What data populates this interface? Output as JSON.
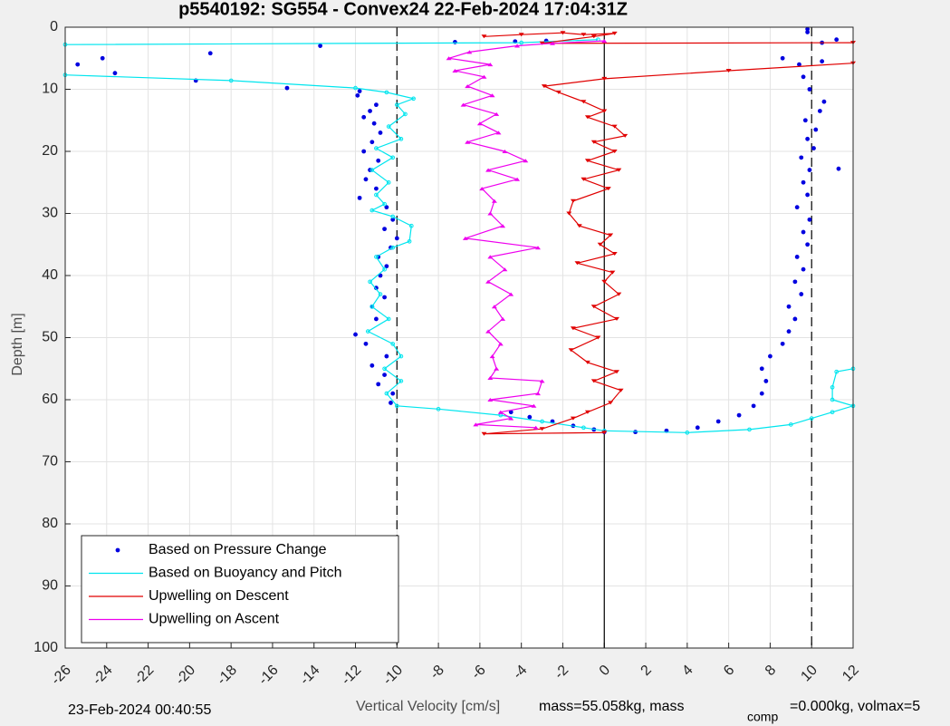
{
  "chart_data": {
    "type": "line",
    "title": "p5540192: SG554 - Convex24 22-Feb-2024 17:04:31Z",
    "x_label": "Vertical Velocity [cm/s]",
    "y_label": "Depth [m]",
    "annotations": [
      "23-Feb-2024 00:40:55",
      "mass=55.058kg, mass",
      "comp",
      "=0.000kg, volmax=5"
    ],
    "xlim": [
      -26,
      12
    ],
    "xticks": [
      -26,
      -24,
      -22,
      -20,
      -18,
      -16,
      -14,
      -12,
      -10,
      -8,
      -6,
      -4,
      -2,
      0,
      2,
      4,
      6,
      8,
      10,
      12
    ],
    "ylim": [
      0,
      100
    ],
    "yticks": [
      0,
      10,
      20,
      30,
      40,
      50,
      60,
      70,
      80,
      90,
      100
    ],
    "y_reversed": true,
    "grid": true,
    "legend": "lower left",
    "vlines": [
      -10,
      0,
      10
    ],
    "series": [
      {
        "name": "Based on Pressure Change",
        "color": "#0000e0",
        "style": "dots",
        "x": [
          -25.4,
          -24.2,
          -23.6,
          -19,
          -19.7,
          -13.7,
          -15.3,
          -7.2,
          -4.3,
          -2.8,
          -11.8,
          -11.9,
          -11,
          -11.3,
          -11.6,
          -11.1,
          -10.8,
          -11.2,
          -11.6,
          -10.9,
          -11.3,
          -11.5,
          -11,
          -11.8,
          -10.5,
          -10.2,
          -10.6,
          -10,
          -10.3,
          -10.9,
          -10.5,
          -10.8,
          -11,
          -10.6,
          -11.2,
          -11,
          -12,
          -11.5,
          -10.5,
          -11.2,
          -10.6,
          -10.9,
          -10.2,
          -10.3,
          -4.5,
          -3.6,
          -2.5,
          -1.5,
          -0.5,
          0,
          1.5,
          3,
          4.5,
          5.5,
          6.5,
          7.2,
          7.6,
          7.8,
          7.6,
          8,
          8.6,
          8.9,
          9.2,
          8.9,
          9.5,
          9.2,
          9.6,
          9.3,
          9.8,
          9.6,
          9.9,
          9.3,
          9.8,
          9.6,
          9.9,
          9.5,
          10.1,
          9.8,
          10.2,
          9.7,
          10.4,
          10.6,
          9.9,
          9.6,
          9.4,
          8.6,
          10.5,
          11.3,
          11.2,
          10.5,
          9.8,
          9.8
        ],
        "values": [
          6,
          5,
          7.4,
          4.2,
          8.6,
          3,
          9.8,
          2.4,
          2.3,
          2.2,
          10.3,
          11,
          12.5,
          13.5,
          14.5,
          15.5,
          17,
          18.5,
          20,
          21.5,
          23,
          24.5,
          26,
          27.5,
          29,
          31,
          32.5,
          34,
          35.5,
          37,
          38.5,
          40,
          42,
          43.5,
          45,
          47,
          49.5,
          51,
          53,
          54.5,
          56,
          57.5,
          59,
          60.5,
          62,
          62.8,
          63.5,
          64.2,
          64.8,
          65.2,
          65.2,
          65,
          64.5,
          63.5,
          62.5,
          61,
          59,
          57,
          55,
          53,
          51,
          49,
          47,
          45,
          43,
          41,
          39,
          37,
          35,
          33,
          31,
          29,
          27,
          25,
          23,
          21,
          19.5,
          18,
          16.5,
          15,
          13.5,
          12,
          10,
          8,
          6,
          5,
          5.5,
          22.8,
          2,
          2.5,
          0.8,
          0.3
        ]
      },
      {
        "name": "Based on Buoyancy and Pitch",
        "color": "#00e5ee",
        "style": "circle",
        "x": [
          -0.3,
          -4,
          -26,
          null,
          -26,
          -18,
          -12,
          -10.5,
          -9.2,
          -10,
          -9.6,
          -10.4,
          -9.8,
          -11,
          -10.2,
          -11.2,
          -10.4,
          -11,
          -10.6,
          -11.2,
          -10.2,
          -9.3,
          -9.4,
          -10.2,
          -11,
          -10.6,
          -11.3,
          -10.8,
          -11.2,
          -10.4,
          -11.4,
          -10.2,
          -9.8,
          -10.6,
          -9.8,
          -10.5,
          -10,
          -8,
          -5,
          -3,
          -1,
          0,
          4,
          7,
          9,
          10,
          11,
          12,
          11,
          11,
          11.2,
          12
        ],
        "values": [
          2,
          2.5,
          2.8,
          null,
          7.7,
          8.6,
          9.8,
          10.5,
          11.5,
          12.5,
          14,
          16,
          18,
          19.5,
          21,
          23,
          25,
          27,
          28.5,
          29.5,
          30.5,
          32,
          34.5,
          35.5,
          37,
          39,
          41,
          43,
          45,
          47,
          49,
          51,
          53,
          55,
          57,
          59,
          61,
          61.5,
          62.5,
          63.5,
          64.5,
          65,
          65.3,
          64.8,
          64,
          63,
          62,
          61,
          60,
          58,
          55.5,
          55
        ]
      },
      {
        "name": "Upwelling on Descent",
        "color": "#e00000",
        "style": "down",
        "x": [
          -5.8,
          -4,
          -2,
          -1,
          0.5,
          -0.5,
          -3,
          12,
          null,
          12,
          6,
          0,
          -2.9,
          -2.2,
          -1,
          0,
          -0.8,
          0.5,
          1,
          -0.5,
          0.5,
          -0.8,
          0.7,
          -1,
          0.2,
          -1.5,
          -1.7,
          -1.2,
          0.3,
          -0.2,
          0.5,
          -1.3,
          0.4,
          0,
          0.7,
          -0.5,
          0.6,
          -1.5,
          -0.3,
          -1.6,
          -0.8,
          0.6,
          -0.5,
          0.8,
          0.3,
          -0.8,
          -1.5,
          -3,
          -5.8,
          0
        ],
        "values": [
          1.5,
          1.2,
          0.9,
          1.2,
          1,
          1.5,
          2.6,
          2.5,
          null,
          5.8,
          7,
          8.3,
          9.5,
          10.5,
          12,
          13.5,
          14.5,
          16,
          17.5,
          18.5,
          20,
          21.5,
          23,
          24.5,
          26,
          28,
          30,
          32,
          33.5,
          35,
          36.5,
          38,
          39.5,
          41,
          43,
          45,
          47,
          48.5,
          50,
          52,
          54,
          55.5,
          57,
          58.5,
          60.5,
          62,
          63,
          64.7,
          65.5,
          65.3
        ]
      },
      {
        "name": "Upwelling on Ascent",
        "color": "#ee00ee",
        "style": "up",
        "x": [
          0,
          -2.5,
          -4.2,
          -6.5,
          -7.5,
          -5.5,
          -7.2,
          -5.8,
          -6.6,
          -5.4,
          -6.8,
          -5.2,
          -6,
          -5.1,
          -6.6,
          -4.8,
          -3.8,
          -5.6,
          -4.2,
          -5.9,
          -5.3,
          -5.5,
          -4.9,
          -6.7,
          -3.2,
          -5.5,
          -4.8,
          -5.6,
          -4.5,
          -5.3,
          -4.9,
          -5.6,
          -5,
          -5.4,
          -5.2,
          -5.5,
          -3,
          -3.2,
          -5.5,
          -3.4,
          -5,
          -4.5,
          -6.2,
          -3.3
        ],
        "values": [
          2.2,
          2.6,
          3,
          4,
          5,
          6,
          7,
          8,
          9.5,
          11,
          12.5,
          14,
          15.5,
          17,
          18.5,
          20,
          21.5,
          23,
          24.5,
          26,
          28,
          30,
          32,
          34,
          35.5,
          37,
          39,
          41,
          43,
          45,
          47,
          49,
          51,
          53,
          55,
          56.5,
          57,
          59,
          60,
          61,
          62,
          63,
          64,
          64.5
        ]
      }
    ]
  }
}
